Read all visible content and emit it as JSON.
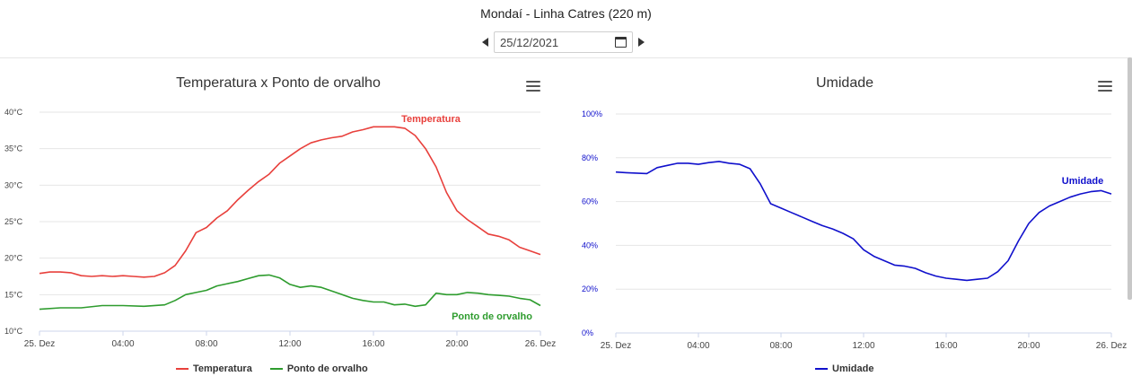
{
  "header": {
    "title": "Mondaí - Linha Catres (220 m)",
    "date_value": "25/12/2021"
  },
  "chart_data": [
    {
      "type": "line",
      "title": "Temperatura x Ponto de orvalho",
      "x_categories": [
        "25. Dez",
        "04:00",
        "08:00",
        "12:00",
        "16:00",
        "20:00",
        "26. Dez"
      ],
      "x_hours": [
        0,
        4,
        8,
        12,
        16,
        20,
        24
      ],
      "y_ticks": [
        "10°C",
        "15°C",
        "20°C",
        "25°C",
        "30°C",
        "35°C",
        "40°C"
      ],
      "ylim": [
        10,
        40
      ],
      "xlim": [
        0,
        24
      ],
      "grid": true,
      "legend_position": "bottom-center",
      "series": [
        {
          "name": "Temperatura",
          "color": "#e8403c",
          "label": "Temperatura",
          "points": [
            [
              0,
              17.9
            ],
            [
              0.5,
              18.1
            ],
            [
              1,
              18.1
            ],
            [
              1.5,
              18.0
            ],
            [
              2,
              17.6
            ],
            [
              2.5,
              17.5
            ],
            [
              3,
              17.6
            ],
            [
              3.5,
              17.5
            ],
            [
              4,
              17.6
            ],
            [
              4.5,
              17.5
            ],
            [
              5,
              17.4
            ],
            [
              5.5,
              17.5
            ],
            [
              6,
              18.0
            ],
            [
              6.5,
              19.0
            ],
            [
              7,
              21.0
            ],
            [
              7.5,
              23.5
            ],
            [
              8,
              24.2
            ],
            [
              8.5,
              25.5
            ],
            [
              9,
              26.5
            ],
            [
              9.5,
              28.0
            ],
            [
              10,
              29.3
            ],
            [
              10.5,
              30.5
            ],
            [
              11,
              31.5
            ],
            [
              11.5,
              33.0
            ],
            [
              12,
              34.0
            ],
            [
              12.5,
              35.0
            ],
            [
              13,
              35.8
            ],
            [
              13.5,
              36.2
            ],
            [
              14,
              36.5
            ],
            [
              14.5,
              36.7
            ],
            [
              15,
              37.3
            ],
            [
              15.5,
              37.6
            ],
            [
              16,
              38.0
            ],
            [
              16.5,
              38.0
            ],
            [
              17,
              38.0
            ],
            [
              17.5,
              37.8
            ],
            [
              18,
              36.8
            ],
            [
              18.5,
              35.0
            ],
            [
              19,
              32.5
            ],
            [
              19.5,
              29.0
            ],
            [
              20,
              26.5
            ],
            [
              20.5,
              25.3
            ],
            [
              21,
              24.3
            ],
            [
              21.5,
              23.3
            ],
            [
              22,
              23.0
            ],
            [
              22.5,
              22.5
            ],
            [
              23,
              21.5
            ],
            [
              23.5,
              21.0
            ],
            [
              24,
              20.5
            ]
          ]
        },
        {
          "name": "Ponto de orvalho",
          "color": "#2e9c2e",
          "label": "Ponto de orvalho",
          "points": [
            [
              0,
              13.0
            ],
            [
              1,
              13.2
            ],
            [
              2,
              13.2
            ],
            [
              3,
              13.5
            ],
            [
              4,
              13.5
            ],
            [
              5,
              13.4
            ],
            [
              6,
              13.6
            ],
            [
              6.5,
              14.2
            ],
            [
              7,
              15.0
            ],
            [
              7.5,
              15.3
            ],
            [
              8,
              15.6
            ],
            [
              8.5,
              16.2
            ],
            [
              9,
              16.5
            ],
            [
              9.5,
              16.8
            ],
            [
              10,
              17.2
            ],
            [
              10.5,
              17.6
            ],
            [
              11,
              17.7
            ],
            [
              11.5,
              17.3
            ],
            [
              12,
              16.4
            ],
            [
              12.5,
              16.0
            ],
            [
              13,
              16.2
            ],
            [
              13.5,
              16.0
            ],
            [
              14,
              15.5
            ],
            [
              14.5,
              15.0
            ],
            [
              15,
              14.5
            ],
            [
              15.5,
              14.2
            ],
            [
              16,
              14.0
            ],
            [
              16.5,
              14.0
            ],
            [
              17,
              13.6
            ],
            [
              17.5,
              13.7
            ],
            [
              18,
              13.4
            ],
            [
              18.5,
              13.6
            ],
            [
              19,
              15.2
            ],
            [
              19.5,
              15.0
            ],
            [
              20,
              15.0
            ],
            [
              20.5,
              15.3
            ],
            [
              21,
              15.2
            ],
            [
              21.5,
              15.0
            ],
            [
              22,
              14.9
            ],
            [
              22.5,
              14.8
            ],
            [
              23,
              14.5
            ],
            [
              23.5,
              14.3
            ],
            [
              24,
              13.5
            ]
          ]
        }
      ]
    },
    {
      "type": "line",
      "title": "Umidade",
      "x_categories": [
        "25. Dez",
        "04:00",
        "08:00",
        "12:00",
        "16:00",
        "20:00",
        "26. Dez"
      ],
      "x_hours": [
        0,
        4,
        8,
        12,
        16,
        20,
        24
      ],
      "y_ticks": [
        "0%",
        "20%",
        "40%",
        "60%",
        "80%",
        "100%"
      ],
      "ylim": [
        0,
        100
      ],
      "xlim": [
        0,
        24
      ],
      "grid": true,
      "legend_position": "bottom-center",
      "series": [
        {
          "name": "Umidade",
          "color": "#1010cc",
          "label": "Umidade",
          "points": [
            [
              0,
              73.5
            ],
            [
              0.5,
              73.2
            ],
            [
              1,
              73.0
            ],
            [
              1.5,
              72.8
            ],
            [
              2,
              75.5
            ],
            [
              2.5,
              76.5
            ],
            [
              3,
              77.5
            ],
            [
              3.5,
              77.5
            ],
            [
              4,
              77.0
            ],
            [
              4.5,
              77.8
            ],
            [
              5,
              78.3
            ],
            [
              5.5,
              77.5
            ],
            [
              6,
              77.0
            ],
            [
              6.5,
              75.0
            ],
            [
              7,
              68.0
            ],
            [
              7.5,
              59.0
            ],
            [
              8,
              57.0
            ],
            [
              8.5,
              55.0
            ],
            [
              9,
              53.0
            ],
            [
              9.5,
              51.0
            ],
            [
              10,
              49.0
            ],
            [
              10.5,
              47.5
            ],
            [
              11,
              45.5
            ],
            [
              11.5,
              43.0
            ],
            [
              12,
              38.0
            ],
            [
              12.5,
              35.0
            ],
            [
              13,
              33.0
            ],
            [
              13.5,
              31.0
            ],
            [
              14,
              30.5
            ],
            [
              14.5,
              29.5
            ],
            [
              15,
              27.5
            ],
            [
              15.5,
              26.0
            ],
            [
              16,
              25.0
            ],
            [
              16.5,
              24.5
            ],
            [
              17,
              24.0
            ],
            [
              17.5,
              24.5
            ],
            [
              18,
              25.0
            ],
            [
              18.5,
              28.0
            ],
            [
              19,
              33.0
            ],
            [
              19.5,
              42.0
            ],
            [
              20,
              50.0
            ],
            [
              20.5,
              55.0
            ],
            [
              21,
              58.0
            ],
            [
              21.5,
              60.0
            ],
            [
              22,
              62.0
            ],
            [
              22.5,
              63.5
            ],
            [
              23,
              64.5
            ],
            [
              23.5,
              65.0
            ],
            [
              24,
              63.5
            ]
          ]
        }
      ]
    }
  ]
}
